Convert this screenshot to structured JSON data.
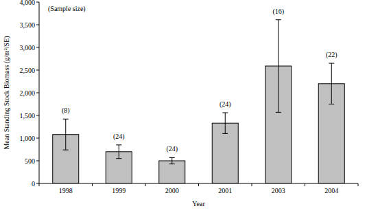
{
  "chart_data": {
    "type": "bar",
    "x_label": "Year",
    "y_label": "Mean Standing Stock Biomass (g/m²/SE)",
    "annotation": "(Sample size)",
    "categories": [
      "1998",
      "1999",
      "2000",
      "2001",
      "2003",
      "2004"
    ],
    "values": [
      1080,
      700,
      500,
      1330,
      2590,
      2200
    ],
    "errors": [
      340,
      150,
      70,
      230,
      1020,
      450
    ],
    "sample_size_labels": [
      "(8)",
      "(24)",
      "(24)",
      "(24)",
      "(16)",
      "(22)"
    ],
    "color": "#c0c0c0",
    "ylim": [
      0,
      4000
    ],
    "yticks": [
      0,
      500,
      {
        "value": 1000,
        "label": "1,000"
      },
      {
        "value": 1500,
        "label": "1,500"
      },
      {
        "value": 2000,
        "label": "2,000"
      },
      {
        "value": 2500,
        "label": "2,500"
      },
      {
        "value": 3000,
        "label": "3,000"
      },
      {
        "value": 3500,
        "label": "3,500"
      },
      {
        "value": 4000,
        "label": "4,000"
      }
    ],
    "grid": false
  }
}
